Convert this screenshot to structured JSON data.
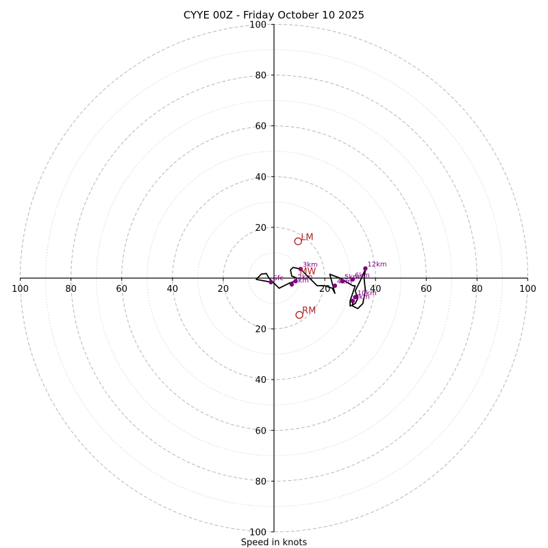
{
  "chart_data": {
    "type": "hodograph",
    "title": "CYYE 00Z - Friday October 10 2025",
    "xlabel": "Speed in knots",
    "units": "knots",
    "range": [
      -100,
      100
    ],
    "rings_major": [
      20,
      40,
      60,
      80,
      100
    ],
    "rings_minor": [
      10,
      30,
      50,
      70,
      90
    ],
    "x_tick_labels": [
      "100",
      "80",
      "60",
      "40",
      "20",
      "20",
      "40",
      "60",
      "80",
      "100"
    ],
    "x_tick_values": [
      -100,
      -80,
      -60,
      -40,
      -20,
      20,
      40,
      60,
      80,
      100
    ],
    "y_tick_labels": [
      "100",
      "80",
      "60",
      "40",
      "20",
      "20",
      "40",
      "60",
      "80",
      "100"
    ],
    "y_tick_values": [
      100,
      80,
      60,
      40,
      20,
      -20,
      -40,
      -60,
      -80,
      -100
    ],
    "trace_color": "#000000",
    "height_marker_color": "#800080",
    "motion_color": "#b22222",
    "grid_color": "#bbbbbb",
    "trace": [
      [
        -1.2,
        -1.6
      ],
      [
        -7,
        -0.5
      ],
      [
        -5,
        1.6
      ],
      [
        -3,
        1.8
      ],
      [
        -2,
        0
      ],
      [
        2,
        -4
      ],
      [
        6,
        -2
      ],
      [
        8.5,
        -1.2
      ],
      [
        9,
        0
      ],
      [
        7,
        0.8
      ],
      [
        6.5,
        3.2
      ],
      [
        7.5,
        4.2
      ],
      [
        10.5,
        3.6
      ],
      [
        12,
        2
      ],
      [
        15,
        -1
      ],
      [
        17,
        -3
      ],
      [
        20,
        -3
      ],
      [
        23,
        -4
      ],
      [
        24,
        -6
      ],
      [
        22,
        1.5
      ],
      [
        26,
        0
      ],
      [
        31,
        -3
      ],
      [
        32,
        -3
      ],
      [
        30,
        -9
      ],
      [
        30,
        -11
      ],
      [
        32,
        -10
      ],
      [
        33,
        -8
      ],
      [
        32,
        -5
      ],
      [
        34,
        -1
      ],
      [
        36,
        3.5
      ],
      [
        35.5,
        0
      ],
      [
        36,
        -5
      ],
      [
        35,
        -10
      ],
      [
        33,
        -12
      ],
      [
        31,
        -11
      ],
      [
        31,
        -9
      ]
    ],
    "height_markers": [
      {
        "label": "Sfc",
        "u": -1.2,
        "v": -1.6
      },
      {
        "label": "1km",
        "u": 7,
        "v": -2.5
      },
      {
        "label": "2km",
        "u": 8.5,
        "v": -1.2
      },
      {
        "label": "3km",
        "u": 10.5,
        "v": 3.6
      },
      {
        "label": "4km",
        "u": 24,
        "v": -3
      },
      {
        "label": "5km",
        "u": 27,
        "v": -1.2
      },
      {
        "label": "6km",
        "u": 31,
        "v": -0.5
      },
      {
        "label": "9km",
        "u": 31,
        "v": -9
      },
      {
        "label": "10km",
        "u": 32,
        "v": -7.5
      },
      {
        "label": "12km",
        "u": 36,
        "v": 3.8
      }
    ],
    "motions": [
      {
        "label": "LM",
        "u": 9.5,
        "v": 14.5,
        "symbol": "open-circle"
      },
      {
        "label": "MW",
        "u": 9,
        "v": 1,
        "symbol": "none"
      },
      {
        "label": "RM",
        "u": 10,
        "v": -14.5,
        "symbol": "open-circle"
      }
    ]
  }
}
